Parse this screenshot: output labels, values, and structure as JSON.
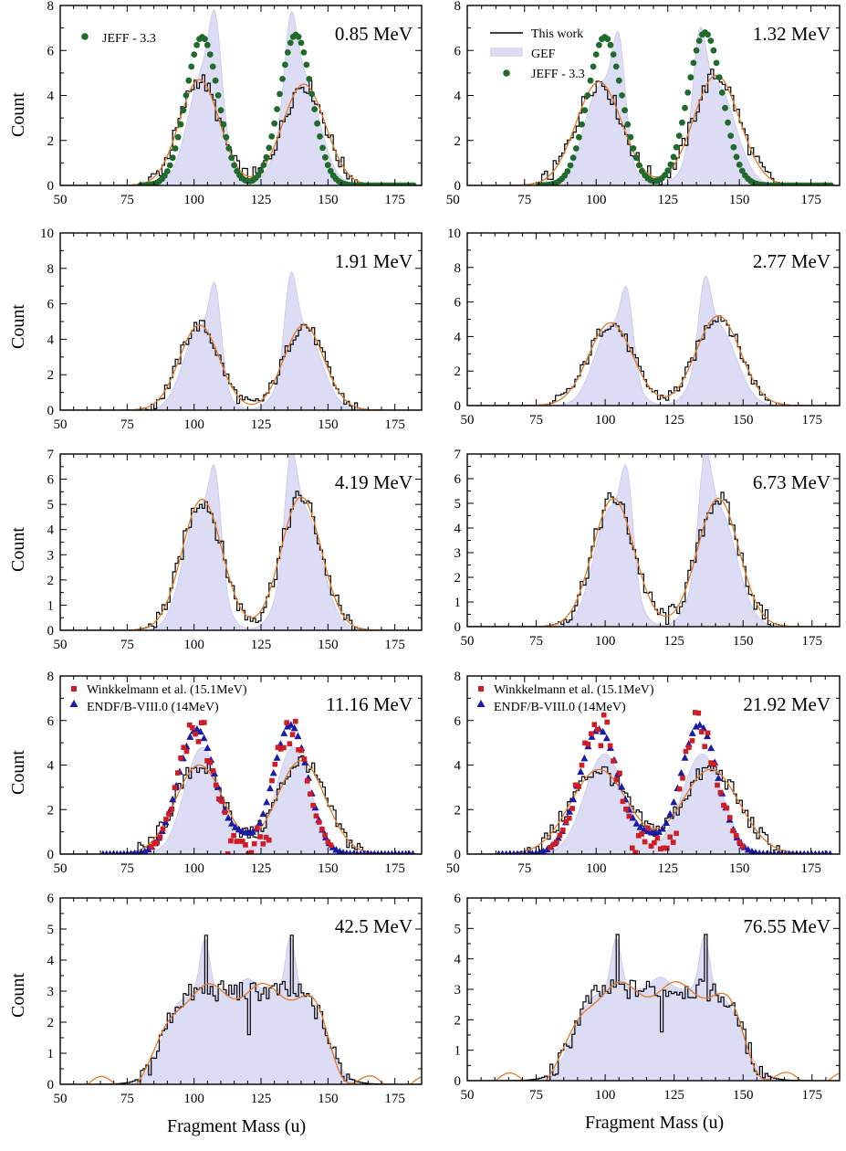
{
  "figure": {
    "ylabel": "Count",
    "xlabel": "Fragment Mass (u)",
    "legend_labels": {
      "this_work": "This work",
      "gef": "GEF",
      "jeff": "JEFF - 3.3",
      "winkelmann": "Winkkelmann et al. (15.1MeV)",
      "endf": "ENDF/B-VIII.0 (14MeV)"
    }
  },
  "chart_data": [
    {
      "type": "histogram",
      "title": "0.85 MeV",
      "xlim": [
        50,
        185
      ],
      "ylim": [
        0,
        8
      ],
      "yticks": [
        0,
        2,
        4,
        6,
        8
      ],
      "xticks": [
        50,
        75,
        100,
        125,
        150,
        175
      ],
      "overlays": [
        "jeff"
      ],
      "legend": [
        "jeff"
      ],
      "this_work_peaks": [
        [
          102,
          4.7,
          7.5
        ],
        [
          141,
          4.5,
          8
        ]
      ],
      "gef_peaks": [
        [
          104,
          5.2,
          6
        ],
        [
          108,
          3.5,
          2.2
        ],
        [
          136,
          3.5,
          2.2
        ],
        [
          140,
          5.0,
          6.5
        ]
      ],
      "ref_peaks": [
        [
          103,
          6.6,
          6
        ],
        [
          138,
          6.7,
          6
        ]
      ]
    },
    {
      "type": "histogram",
      "title": "1.32 MeV",
      "xlim": [
        55,
        185
      ],
      "ylim": [
        0,
        8
      ],
      "yticks": [
        0,
        2,
        4,
        6,
        8
      ],
      "xticks": [
        50,
        75,
        100,
        125,
        150,
        175
      ],
      "overlays": [
        "jeff"
      ],
      "legend": [
        "this_work",
        "gef",
        "jeff"
      ],
      "this_work_peaks": [
        [
          101,
          4.6,
          8
        ],
        [
          142,
          4.9,
          8
        ]
      ],
      "gef_peaks": [
        [
          102,
          4.5,
          6
        ],
        [
          108,
          4.0,
          2.2
        ],
        [
          136,
          4.0,
          2.2
        ],
        [
          142,
          4.5,
          6.5
        ]
      ],
      "ref_peaks": [
        [
          103,
          6.6,
          6
        ],
        [
          138,
          6.8,
          6
        ]
      ]
    },
    {
      "type": "histogram",
      "title": "1.91 MeV",
      "xlim": [
        50,
        185
      ],
      "ylim": [
        0,
        10
      ],
      "yticks": [
        0,
        2,
        4,
        6,
        8,
        10
      ],
      "xticks": [
        50,
        75,
        100,
        125,
        150,
        175
      ],
      "overlays": [],
      "legend": [],
      "this_work_peaks": [
        [
          102,
          4.8,
          7.5
        ],
        [
          141,
          4.8,
          7.5
        ]
      ],
      "gef_peaks": [
        [
          102,
          4.6,
          6
        ],
        [
          108,
          4.3,
          2.2
        ],
        [
          136,
          4.3,
          2.2
        ],
        [
          141,
          4.6,
          6.5
        ]
      ],
      "ref_peaks": []
    },
    {
      "type": "histogram",
      "title": "2.77 MeV",
      "xlim": [
        50,
        185
      ],
      "ylim": [
        0,
        10
      ],
      "yticks": [
        0,
        2,
        4,
        6,
        8,
        10
      ],
      "xticks": [
        50,
        75,
        100,
        125,
        150,
        175
      ],
      "overlays": [],
      "legend": [],
      "this_work_peaks": [
        [
          102,
          4.8,
          8
        ],
        [
          141,
          5.2,
          8
        ]
      ],
      "gef_peaks": [
        [
          102,
          4.6,
          6
        ],
        [
          108,
          4.0,
          2.2
        ],
        [
          136,
          4.0,
          2.2
        ],
        [
          141,
          4.6,
          6.5
        ]
      ],
      "ref_peaks": []
    },
    {
      "type": "histogram",
      "title": "4.19 MeV",
      "xlim": [
        50,
        185
      ],
      "ylim": [
        0,
        7
      ],
      "yticks": [
        0,
        1,
        2,
        3,
        4,
        5,
        6,
        7
      ],
      "xticks": [
        50,
        75,
        100,
        125,
        150,
        175
      ],
      "overlays": [],
      "legend": [],
      "this_work_peaks": [
        [
          103,
          5.2,
          7.5
        ],
        [
          140,
          5.3,
          7.5
        ]
      ],
      "gef_peaks": [
        [
          102,
          4.8,
          6
        ],
        [
          108,
          3.5,
          2.2
        ],
        [
          136,
          3.5,
          2.2
        ],
        [
          141,
          4.8,
          6.5
        ]
      ],
      "ref_peaks": []
    },
    {
      "type": "histogram",
      "title": "6.73 MeV",
      "xlim": [
        50,
        185
      ],
      "ylim": [
        0,
        7
      ],
      "yticks": [
        0,
        1,
        2,
        3,
        4,
        5,
        6,
        7
      ],
      "xticks": [
        50,
        75,
        100,
        125,
        150,
        175
      ],
      "overlays": [],
      "legend": [],
      "this_work_peaks": [
        [
          103,
          5.2,
          7.5
        ],
        [
          141,
          5.2,
          7.5
        ]
      ],
      "gef_peaks": [
        [
          102,
          4.8,
          6
        ],
        [
          108,
          3.5,
          2.2
        ],
        [
          136,
          3.5,
          2.2
        ],
        [
          141,
          4.8,
          6.5
        ]
      ],
      "ref_peaks": []
    },
    {
      "type": "histogram",
      "title": "11.16 MeV",
      "xlim": [
        50,
        185
      ],
      "ylim": [
        0,
        8
      ],
      "yticks": [
        0,
        2,
        4,
        6,
        8
      ],
      "xticks": [
        50,
        75,
        100,
        125,
        150,
        175
      ],
      "overlays": [
        "winkelmann",
        "endf"
      ],
      "legend": [
        "winkelmann",
        "endf"
      ],
      "this_work_peaks": [
        [
          102,
          4.0,
          9
        ],
        [
          140,
          4.2,
          9
        ]
      ],
      "gef_peaks": [
        [
          103,
          4.8,
          6.5
        ],
        [
          137,
          4.8,
          6.5
        ]
      ],
      "ref_peaks": [
        [
          101,
          5.6,
          7
        ],
        [
          136,
          5.8,
          6.5
        ]
      ]
    },
    {
      "type": "histogram",
      "title": "21.92 MeV",
      "xlim": [
        55,
        185
      ],
      "ylim": [
        0,
        8
      ],
      "yticks": [
        0,
        2,
        4,
        6,
        8
      ],
      "xticks": [
        50,
        75,
        100,
        125,
        150,
        175
      ],
      "overlays": [
        "winkelmann",
        "endf"
      ],
      "legend": [
        "winkelmann",
        "endf"
      ],
      "this_work_peaks": [
        [
          101,
          3.8,
          10
        ],
        [
          140,
          3.8,
          10
        ]
      ],
      "gef_peaks": [
        [
          103,
          4.5,
          7
        ],
        [
          137,
          4.5,
          7
        ]
      ],
      "ref_peaks": [
        [
          101,
          5.6,
          7
        ],
        [
          136,
          5.8,
          6.5
        ]
      ]
    },
    {
      "type": "histogram",
      "title": "42.5 MeV",
      "xlim": [
        50,
        185
      ],
      "ylim": [
        0,
        6
      ],
      "yticks": [
        0,
        1,
        2,
        3,
        4,
        5,
        6
      ],
      "xticks": [
        50,
        75,
        100,
        125,
        150,
        175
      ],
      "overlays": [],
      "legend": [],
      "this_work_flat": {
        "lo": 88,
        "hi": 150,
        "level": 3.0
      },
      "gef_flat": {
        "lo": 88,
        "hi": 150,
        "level": 3.0
      },
      "ref_peaks": []
    },
    {
      "type": "histogram",
      "title": "76.55 MeV",
      "xlim": [
        50,
        185
      ],
      "ylim": [
        0,
        6
      ],
      "yticks": [
        0,
        1,
        2,
        3,
        4,
        5,
        6
      ],
      "xticks": [
        50,
        75,
        100,
        125,
        150,
        175
      ],
      "overlays": [],
      "legend": [],
      "this_work_flat": {
        "lo": 88,
        "hi": 150,
        "level": 3.0
      },
      "gef_flat": {
        "lo": 88,
        "hi": 150,
        "level": 3.0
      },
      "ref_peaks": []
    }
  ],
  "colors": {
    "hist": "#000000",
    "smooth": "#e07a2a",
    "gef_fill": "#dcdcf4",
    "jeff": "#1f6b2b",
    "winkelmann": "#d01c24",
    "endf": "#1a1aa8",
    "frame": "#000000"
  }
}
